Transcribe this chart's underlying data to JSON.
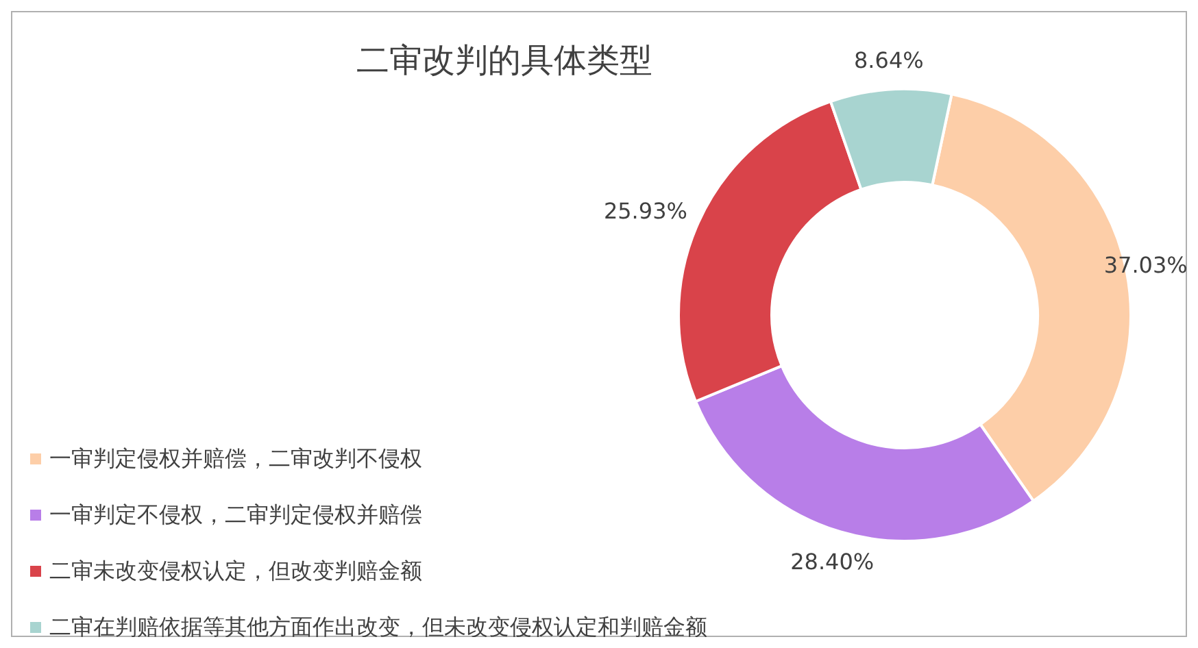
{
  "chart_data": {
    "type": "donut",
    "title": "二审改判的具体类型",
    "categories": [
      "一审判定侵权并赔偿，二审改判不侵权",
      "一审判定不侵权，二审判定侵权并赔偿",
      "二审未改变侵权认定，但改变判赔金额",
      "二审在判赔依据等其他方面作出改变，但未改变侵权认定和判赔金额"
    ],
    "values": [
      37.03,
      28.4,
      25.93,
      8.64
    ],
    "colors": [
      "#fdcea8",
      "#b87ee8",
      "#d9434a",
      "#a8d4d0"
    ],
    "value_labels": [
      "37.03%",
      "28.40%",
      "25.93%",
      "8.64%"
    ],
    "legend": "bottom left"
  }
}
